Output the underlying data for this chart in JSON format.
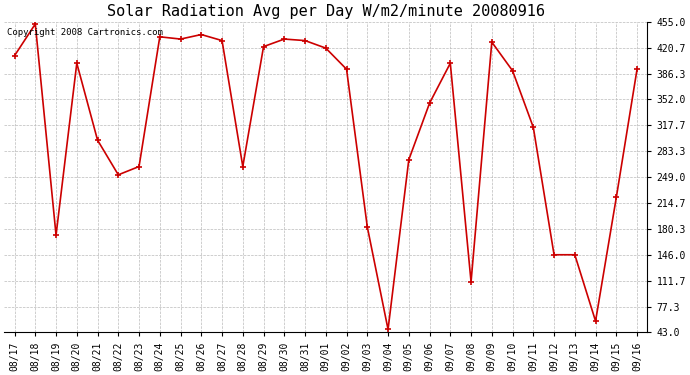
{
  "title": "Solar Radiation Avg per Day W/m2/minute 20080916",
  "copyright_text": "Copyright 2008 Cartronics.com",
  "dates": [
    "08/17",
    "08/18",
    "08/19",
    "08/20",
    "08/21",
    "08/22",
    "08/23",
    "08/24",
    "08/25",
    "08/26",
    "08/27",
    "08/28",
    "08/29",
    "08/30",
    "08/31",
    "09/01",
    "09/02",
    "09/03",
    "09/04",
    "09/05",
    "09/06",
    "09/07",
    "09/08",
    "09/09",
    "09/10",
    "09/11",
    "09/12",
    "09/13",
    "09/14",
    "09/15",
    "09/16"
  ],
  "values": [
    410.0,
    452.0,
    172.0,
    400.0,
    298.0,
    252.0,
    263.0,
    435.0,
    432.0,
    438.0,
    430.0,
    263.0,
    422.0,
    432.0,
    430.0,
    420.0,
    392.0,
    183.0,
    47.0,
    272.0,
    347.0,
    400.0,
    110.0,
    428.0,
    390.0,
    315.0,
    146.0,
    146.0,
    58.0,
    222.0,
    392.0
  ],
  "ylim_min": 43.0,
  "ylim_max": 455.0,
  "yticks": [
    43.0,
    77.3,
    111.7,
    146.0,
    180.3,
    214.7,
    249.0,
    283.3,
    317.7,
    352.0,
    386.3,
    420.7,
    455.0
  ],
  "ytick_labels": [
    "43.0",
    "77.3",
    "111.7",
    "146.0",
    "180.3",
    "214.7",
    "249.0",
    "283.3",
    "317.7",
    "352.0",
    "386.3",
    "420.7",
    "455.0"
  ],
  "line_color": "#cc0000",
  "marker_color": "#cc0000",
  "background_color": "#ffffff",
  "grid_color": "#bbbbbb",
  "title_fontsize": 11,
  "tick_fontsize": 7.0,
  "copyright_fontsize": 6.5,
  "fig_width": 6.9,
  "fig_height": 3.75,
  "dpi": 100
}
